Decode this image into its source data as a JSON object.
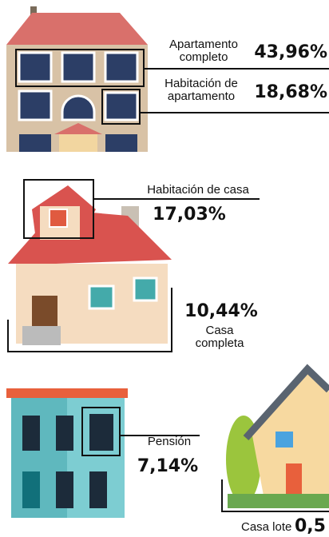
{
  "items": [
    {
      "label": [
        "Apartamento",
        "completo"
      ],
      "value": "43,96%"
    },
    {
      "label": [
        "Habitación de",
        "apartamento"
      ],
      "value": "18,68%"
    },
    {
      "label": [
        "Habitación de casa"
      ],
      "value": "17,03%"
    },
    {
      "label": [
        "Casa",
        "completa"
      ],
      "value": "10,44%"
    },
    {
      "label": [
        "Pensión"
      ],
      "value": "7,14%"
    },
    {
      "label": [
        "Casa lote"
      ],
      "value": "0,5"
    }
  ]
}
